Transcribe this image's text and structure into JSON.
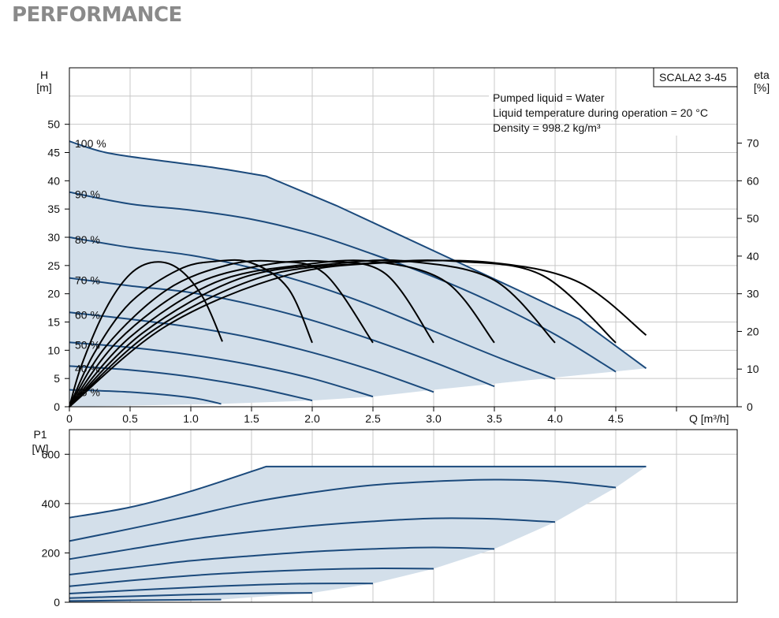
{
  "page": {
    "heading": "PERFORMANCE"
  },
  "colors": {
    "curve": "#1b4a7c",
    "eta_curve": "#000000",
    "envelope_fill": "#d3dfea",
    "grid": "#c8c8c8",
    "frame": "#000000",
    "heading": "#8a8a8a"
  },
  "chart_data": [
    {
      "type": "line",
      "name": "head",
      "model_label": "SCALA2 3-45",
      "info_lines": [
        "Pumped liquid = Water",
        "Liquid temperature during operation = 20 °C",
        "Density = 998.2 kg/m³"
      ],
      "xlabel": "Q [m³/h]",
      "ylabel": [
        "H",
        "[m]"
      ],
      "y2label": [
        "eta",
        "[%]"
      ],
      "xlim": [
        0,
        5.5
      ],
      "ylim": [
        0,
        60
      ],
      "y2lim": [
        0,
        90
      ],
      "xticks": [
        0,
        0.5,
        1.0,
        1.5,
        2.0,
        2.5,
        3.0,
        3.5,
        4.0,
        4.5
      ],
      "xtick_labels": [
        "0",
        "0.5",
        "1.0",
        "1.5",
        "2.0",
        "2.5",
        "3.0",
        "3.5",
        "4.0",
        "4.5"
      ],
      "yticks": [
        0,
        5,
        10,
        15,
        20,
        25,
        30,
        35,
        40,
        45,
        50
      ],
      "yticks2": [
        0,
        10,
        20,
        30,
        40,
        50,
        60,
        70
      ],
      "grid": true,
      "series": [
        {
          "name": "100 %",
          "points": [
            [
              0,
              47
            ],
            [
              0.3,
              45
            ],
            [
              0.7,
              43.7
            ],
            [
              1.2,
              42.3
            ],
            [
              1.62,
              40.8
            ],
            [
              2.2,
              35.6
            ],
            [
              2.7,
              30.6
            ],
            [
              3.2,
              25.6
            ],
            [
              3.7,
              20.6
            ],
            [
              4.2,
              15.5
            ],
            [
              4.75,
              6.8
            ]
          ]
        },
        {
          "name": "90 %",
          "points": [
            [
              0,
              38
            ],
            [
              0.5,
              35.9
            ],
            [
              1.0,
              34.8
            ],
            [
              1.5,
              33.2
            ],
            [
              2.0,
              30.6
            ],
            [
              2.5,
              27
            ],
            [
              3.0,
              23
            ],
            [
              3.5,
              18.3
            ],
            [
              4.0,
              12.8
            ],
            [
              4.5,
              6.2
            ]
          ]
        },
        {
          "name": "80 %",
          "points": [
            [
              0,
              30
            ],
            [
              0.5,
              28.2
            ],
            [
              1.0,
              26.8
            ],
            [
              1.5,
              24.6
            ],
            [
              2.0,
              21.6
            ],
            [
              2.5,
              17.8
            ],
            [
              3.0,
              13.4
            ],
            [
              3.5,
              9
            ],
            [
              4.0,
              4.9
            ]
          ]
        },
        {
          "name": "70 %",
          "points": [
            [
              0,
              22.8
            ],
            [
              0.5,
              21.4
            ],
            [
              1.0,
              20.2
            ],
            [
              1.5,
              18.1
            ],
            [
              2.0,
              15.3
            ],
            [
              2.5,
              11.8
            ],
            [
              3.0,
              7.9
            ],
            [
              3.5,
              3.6
            ]
          ]
        },
        {
          "name": "60 %",
          "points": [
            [
              0,
              16.7
            ],
            [
              0.5,
              15.5
            ],
            [
              1.0,
              14.1
            ],
            [
              1.5,
              12.2
            ],
            [
              2.0,
              9.6
            ],
            [
              2.5,
              6.4
            ],
            [
              3.0,
              2.6
            ]
          ]
        },
        {
          "name": "50 %",
          "points": [
            [
              0,
              11.4
            ],
            [
              0.5,
              10.5
            ],
            [
              1.0,
              9.2
            ],
            [
              1.5,
              7.4
            ],
            [
              2.0,
              5
            ],
            [
              2.5,
              1.8
            ]
          ]
        },
        {
          "name": "40 %",
          "points": [
            [
              0,
              7.2
            ],
            [
              0.5,
              6.5
            ],
            [
              1.0,
              5.3
            ],
            [
              1.5,
              3.5
            ],
            [
              2.0,
              1.1
            ]
          ]
        },
        {
          "name": "25 %",
          "points": [
            [
              0,
              3
            ],
            [
              0.5,
              2.6
            ],
            [
              1.0,
              1.6
            ],
            [
              1.25,
              0.5
            ]
          ]
        }
      ],
      "envelope": [
        [
          0,
          47
        ],
        [
          0.3,
          45
        ],
        [
          0.7,
          43.7
        ],
        [
          1.2,
          42.3
        ],
        [
          1.62,
          40.8
        ],
        [
          2.2,
          35.6
        ],
        [
          2.7,
          30.6
        ],
        [
          3.2,
          25.6
        ],
        [
          3.7,
          20.6
        ],
        [
          4.2,
          15.5
        ],
        [
          4.75,
          6.8
        ],
        [
          3.0,
          3
        ],
        [
          2.5,
          1.8
        ],
        [
          2.0,
          1.1
        ],
        [
          1.25,
          0.5
        ],
        [
          0,
          0
        ]
      ],
      "eta_series": [
        {
          "points": [
            [
              0,
              0
            ],
            [
              0.1,
              11
            ],
            [
              0.3,
              26
            ],
            [
              0.5,
              35.2
            ],
            [
              0.7,
              38.4
            ],
            [
              0.9,
              36.6
            ],
            [
              1.1,
              29
            ],
            [
              1.26,
              17.3
            ]
          ]
        },
        {
          "points": [
            [
              0,
              0
            ],
            [
              0.2,
              14
            ],
            [
              0.5,
              27.6
            ],
            [
              0.9,
              36.4
            ],
            [
              1.2,
              38.6
            ],
            [
              1.5,
              38.2
            ],
            [
              1.8,
              31.5
            ],
            [
              2.0,
              17
            ]
          ]
        },
        {
          "points": [
            [
              0,
              0
            ],
            [
              0.3,
              16
            ],
            [
              0.8,
              31
            ],
            [
              1.3,
              37.6
            ],
            [
              1.7,
              38.6
            ],
            [
              2.1,
              35.4
            ],
            [
              2.5,
              17
            ]
          ]
        },
        {
          "points": [
            [
              0,
              0
            ],
            [
              0.4,
              17.5
            ],
            [
              1.0,
              32
            ],
            [
              1.6,
              37.6
            ],
            [
              2.1,
              38.6
            ],
            [
              2.6,
              35.4
            ],
            [
              3.0,
              17
            ]
          ]
        },
        {
          "points": [
            [
              0,
              0
            ],
            [
              0.5,
              18.5
            ],
            [
              1.2,
              33
            ],
            [
              1.9,
              37.6
            ],
            [
              2.5,
              38.6
            ],
            [
              3.1,
              33.2
            ],
            [
              3.5,
              17
            ]
          ]
        },
        {
          "points": [
            [
              0,
              0
            ],
            [
              0.6,
              19.5
            ],
            [
              1.4,
              34
            ],
            [
              2.2,
              38
            ],
            [
              2.8,
              38.6
            ],
            [
              3.5,
              33.6
            ],
            [
              4.0,
              17
            ]
          ]
        },
        {
          "points": [
            [
              0,
              0
            ],
            [
              0.7,
              20.5
            ],
            [
              1.6,
              34.6
            ],
            [
              2.5,
              38.2
            ],
            [
              3.2,
              38.6
            ],
            [
              3.9,
              34.8
            ],
            [
              4.5,
              17
            ]
          ]
        },
        {
          "points": [
            [
              0,
              0
            ],
            [
              0.8,
              21.5
            ],
            [
              1.8,
              35
            ],
            [
              2.7,
              38.4
            ],
            [
              3.5,
              38.2
            ],
            [
              4.2,
              33
            ],
            [
              4.75,
              19
            ]
          ]
        }
      ]
    },
    {
      "type": "line",
      "name": "power",
      "ylabel": [
        "P1",
        "[W]"
      ],
      "xlim": [
        0,
        5.5
      ],
      "ylim": [
        0,
        700
      ],
      "yticks": [
        0,
        200,
        400,
        600
      ],
      "grid": true,
      "series": [
        {
          "points": [
            [
              0,
              343
            ],
            [
              0.5,
              385
            ],
            [
              1.0,
              450
            ],
            [
              1.62,
              550
            ],
            [
              4.75,
              550
            ]
          ]
        },
        {
          "points": [
            [
              0,
              248
            ],
            [
              0.5,
              298
            ],
            [
              1.0,
              350
            ],
            [
              1.5,
              405
            ],
            [
              2.0,
              445
            ],
            [
              2.5,
              475
            ],
            [
              3.0,
              490
            ],
            [
              3.5,
              497
            ],
            [
              4.0,
              490
            ],
            [
              4.5,
              465
            ]
          ]
        },
        {
          "points": [
            [
              0,
              175
            ],
            [
              0.5,
              215
            ],
            [
              1.0,
              255
            ],
            [
              1.5,
              285
            ],
            [
              2.0,
              310
            ],
            [
              2.5,
              328
            ],
            [
              3.0,
              340
            ],
            [
              3.5,
              338
            ],
            [
              4.0,
              325
            ]
          ]
        },
        {
          "points": [
            [
              0,
              112
            ],
            [
              0.5,
              140
            ],
            [
              1.0,
              168
            ],
            [
              1.5,
              188
            ],
            [
              2.0,
              205
            ],
            [
              2.5,
              216
            ],
            [
              3.0,
              222
            ],
            [
              3.5,
              216
            ]
          ]
        },
        {
          "points": [
            [
              0,
              65
            ],
            [
              0.5,
              88
            ],
            [
              1.0,
              108
            ],
            [
              1.5,
              122
            ],
            [
              2.0,
              132
            ],
            [
              2.5,
              137
            ],
            [
              3.0,
              136
            ]
          ]
        },
        {
          "points": [
            [
              0,
              35
            ],
            [
              0.5,
              48
            ],
            [
              1.0,
              60
            ],
            [
              1.5,
              70
            ],
            [
              2.0,
              76
            ],
            [
              2.5,
              76
            ]
          ]
        },
        {
          "points": [
            [
              0,
              17
            ],
            [
              0.5,
              24
            ],
            [
              1.0,
              31
            ],
            [
              1.5,
              36
            ],
            [
              2.0,
              38
            ]
          ]
        },
        {
          "points": [
            [
              0,
              5
            ],
            [
              0.5,
              8
            ],
            [
              1.0,
              10
            ],
            [
              1.25,
              11
            ]
          ]
        }
      ],
      "envelope": [
        [
          0,
          343
        ],
        [
          0.5,
          385
        ],
        [
          1.0,
          450
        ],
        [
          1.62,
          550
        ],
        [
          4.75,
          550
        ],
        [
          4.5,
          465
        ],
        [
          4.0,
          325
        ],
        [
          3.5,
          216
        ],
        [
          3.0,
          136
        ],
        [
          2.5,
          76
        ],
        [
          2.0,
          38
        ],
        [
          1.25,
          11
        ],
        [
          0,
          0
        ]
      ]
    }
  ]
}
